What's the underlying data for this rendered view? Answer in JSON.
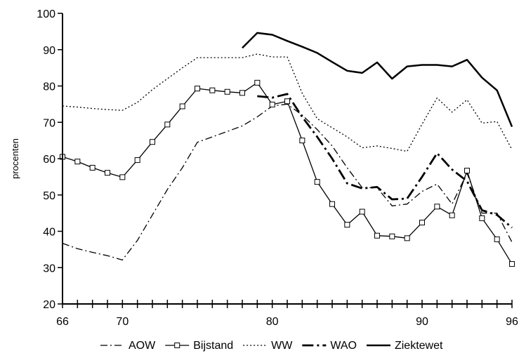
{
  "chart_data": {
    "type": "line",
    "title": "",
    "xlabel": "",
    "ylabel": "procenten",
    "xlim": [
      66,
      96
    ],
    "ylim": [
      20,
      100
    ],
    "xticks_labeled": [
      "66",
      "70",
      "80",
      "90",
      "96"
    ],
    "yticks_labeled": [
      "20",
      "30",
      "40",
      "50",
      "60",
      "70",
      "80",
      "90",
      "100"
    ],
    "grid": false,
    "legend_position": "bottom",
    "series": [
      {
        "name": "AOW",
        "style": "dash-dot",
        "x": [
          66,
          67,
          68,
          69,
          70,
          71,
          72,
          73,
          74,
          75,
          76,
          77,
          78,
          79,
          80,
          81,
          82,
          83,
          84,
          85,
          86,
          87,
          88,
          89,
          90,
          91,
          92,
          93,
          94,
          95,
          96
        ],
        "y": [
          36.7,
          35.2,
          34.2,
          33.3,
          32.1,
          37.5,
          44.5,
          51.5,
          57.5,
          64.5,
          66,
          67.5,
          69,
          71.5,
          74.5,
          75,
          72,
          68,
          63.5,
          57.5,
          52,
          52,
          47,
          47.5,
          51,
          53,
          47.5,
          56,
          45,
          45,
          37
        ]
      },
      {
        "name": "Bijstand",
        "style": "solid-square-markers",
        "x": [
          66,
          67,
          68,
          69,
          70,
          71,
          72,
          73,
          74,
          75,
          76,
          77,
          78,
          79,
          80,
          81,
          82,
          83,
          84,
          85,
          86,
          87,
          88,
          89,
          90,
          91,
          92,
          93,
          94,
          95,
          96
        ],
        "y": [
          60.5,
          59.2,
          57.5,
          56.1,
          54.9,
          59.6,
          64.6,
          69.4,
          74.4,
          79.3,
          78.8,
          78.4,
          78.1,
          80.9,
          74.9,
          75.8,
          65,
          53.6,
          47.5,
          41.8,
          45.4,
          38.8,
          38.6,
          38.1,
          42.4,
          46.8,
          44.4,
          56.7,
          43.6,
          37.8,
          31
        ]
      },
      {
        "name": "WW",
        "style": "dotted",
        "x": [
          66,
          67,
          68,
          69,
          70,
          71,
          72,
          73,
          74,
          75,
          76,
          77,
          78,
          79,
          80,
          81,
          82,
          83,
          84,
          85,
          86,
          87,
          88,
          89,
          90,
          91,
          92,
          93,
          94,
          95,
          96
        ],
        "y": [
          74.5,
          74.2,
          73.8,
          73.5,
          73.3,
          75.5,
          79,
          82,
          85,
          87.8,
          87.8,
          87.8,
          87.8,
          88.8,
          88,
          88,
          78,
          71,
          68.5,
          66,
          63,
          63.5,
          62.8,
          62,
          69.5,
          76.7,
          72.8,
          76.2,
          69.8,
          70.2,
          62.5
        ]
      },
      {
        "name": "WAO",
        "style": "long-dash-dot",
        "x": [
          79,
          80,
          81,
          82,
          83,
          84,
          85,
          86,
          87,
          88,
          89,
          90,
          91,
          92,
          93,
          94,
          95,
          96
        ],
        "y": [
          77.2,
          76.8,
          77.8,
          71.5,
          66,
          60,
          53.2,
          51.8,
          52.2,
          48.8,
          49,
          55,
          61.5,
          57,
          53.8,
          45.8,
          44.5,
          41
        ]
      },
      {
        "name": "Ziektewet",
        "style": "solid-thick",
        "x": [
          78,
          79,
          80,
          81,
          82,
          83,
          84,
          85,
          86,
          87,
          88,
          89,
          90,
          91,
          92,
          93,
          94,
          95,
          96
        ],
        "y": [
          90.5,
          94.6,
          94.1,
          92.4,
          90.8,
          89.1,
          86.6,
          84.2,
          83.6,
          86.5,
          82,
          85.4,
          85.8,
          85.8,
          85.4,
          87.2,
          82.3,
          78.8,
          68.8
        ]
      }
    ]
  }
}
